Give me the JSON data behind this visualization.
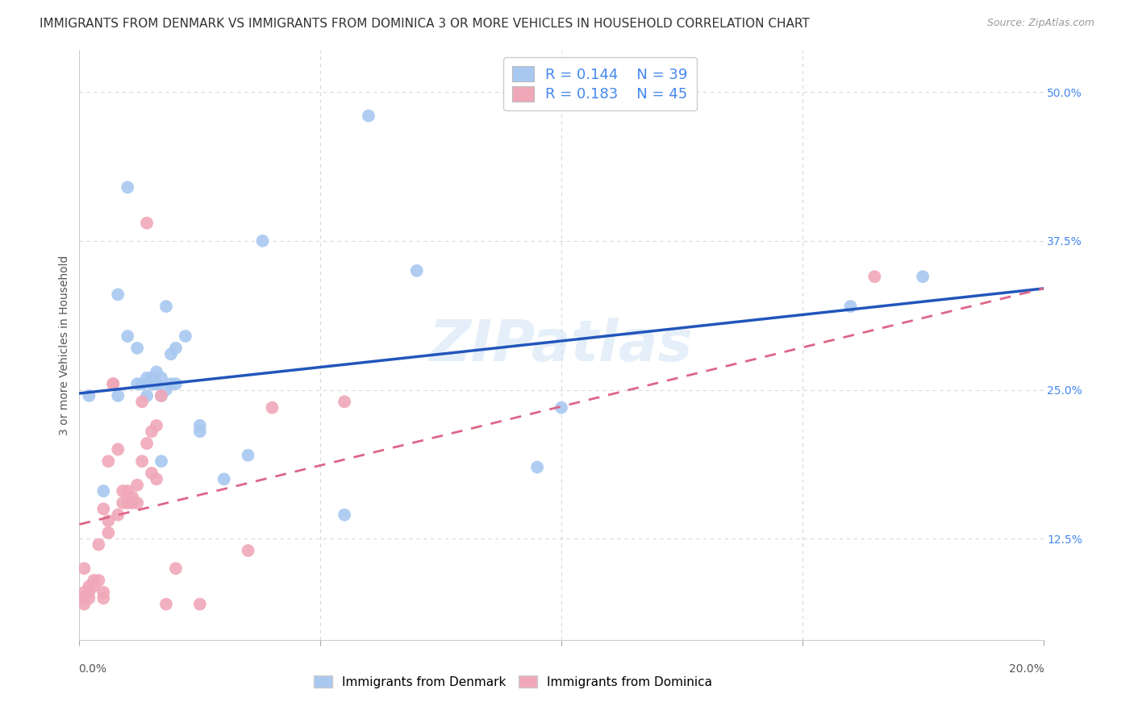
{
  "title": "IMMIGRANTS FROM DENMARK VS IMMIGRANTS FROM DOMINICA 3 OR MORE VEHICLES IN HOUSEHOLD CORRELATION CHART",
  "source": "Source: ZipAtlas.com",
  "ylabel": "3 or more Vehicles in Household",
  "yticks": [
    0.125,
    0.25,
    0.375,
    0.5
  ],
  "ytick_labels": [
    "12.5%",
    "25.0%",
    "37.5%",
    "50.0%"
  ],
  "xlim": [
    0.0,
    0.2
  ],
  "ylim": [
    0.04,
    0.535
  ],
  "watermark": "ZIPatlas",
  "legend_r_denmark": "0.144",
  "legend_n_denmark": "39",
  "legend_r_dominica": "0.183",
  "legend_n_dominica": "45",
  "denmark_color": "#a8c8f0",
  "dominica_color": "#f0a8b8",
  "denmark_line_color": "#2255bb",
  "dominica_line_color": "#dd6688",
  "denmark_scatter_x": [
    0.002,
    0.005,
    0.008,
    0.008,
    0.01,
    0.01,
    0.012,
    0.012,
    0.013,
    0.013,
    0.014,
    0.014,
    0.015,
    0.015,
    0.016,
    0.016,
    0.016,
    0.017,
    0.017,
    0.017,
    0.018,
    0.018,
    0.019,
    0.019,
    0.02,
    0.02,
    0.022,
    0.025,
    0.025,
    0.03,
    0.035,
    0.038,
    0.055,
    0.06,
    0.07,
    0.095,
    0.1,
    0.16,
    0.175
  ],
  "denmark_scatter_y": [
    0.245,
    0.165,
    0.33,
    0.245,
    0.42,
    0.295,
    0.285,
    0.255,
    0.255,
    0.255,
    0.26,
    0.245,
    0.26,
    0.255,
    0.265,
    0.255,
    0.255,
    0.26,
    0.245,
    0.19,
    0.25,
    0.32,
    0.255,
    0.28,
    0.255,
    0.285,
    0.295,
    0.22,
    0.215,
    0.175,
    0.195,
    0.375,
    0.145,
    0.48,
    0.35,
    0.185,
    0.235,
    0.32,
    0.345
  ],
  "dominica_scatter_x": [
    0.001,
    0.001,
    0.001,
    0.001,
    0.002,
    0.002,
    0.002,
    0.003,
    0.003,
    0.004,
    0.004,
    0.005,
    0.005,
    0.005,
    0.006,
    0.006,
    0.006,
    0.007,
    0.007,
    0.008,
    0.008,
    0.009,
    0.009,
    0.01,
    0.01,
    0.011,
    0.011,
    0.012,
    0.012,
    0.013,
    0.013,
    0.014,
    0.014,
    0.015,
    0.015,
    0.016,
    0.016,
    0.017,
    0.018,
    0.02,
    0.025,
    0.035,
    0.04,
    0.055,
    0.165
  ],
  "dominica_scatter_y": [
    0.07,
    0.075,
    0.08,
    0.1,
    0.075,
    0.08,
    0.085,
    0.085,
    0.09,
    0.09,
    0.12,
    0.075,
    0.08,
    0.15,
    0.13,
    0.14,
    0.19,
    0.255,
    0.255,
    0.145,
    0.2,
    0.155,
    0.165,
    0.155,
    0.165,
    0.16,
    0.155,
    0.155,
    0.17,
    0.19,
    0.24,
    0.39,
    0.205,
    0.18,
    0.215,
    0.175,
    0.22,
    0.245,
    0.07,
    0.1,
    0.07,
    0.115,
    0.235,
    0.24,
    0.345
  ],
  "background_color": "#ffffff",
  "grid_color": "#d8d8d8",
  "title_fontsize": 11,
  "axis_label_fontsize": 10,
  "tick_fontsize": 10,
  "legend_fontsize": 13,
  "denmark_line_x0": 0.0,
  "denmark_line_y0": 0.247,
  "denmark_line_x1": 0.2,
  "denmark_line_y1": 0.335,
  "dominica_line_x0": 0.0,
  "dominica_line_y0": 0.137,
  "dominica_line_x1": 0.2,
  "dominica_line_y1": 0.335
}
